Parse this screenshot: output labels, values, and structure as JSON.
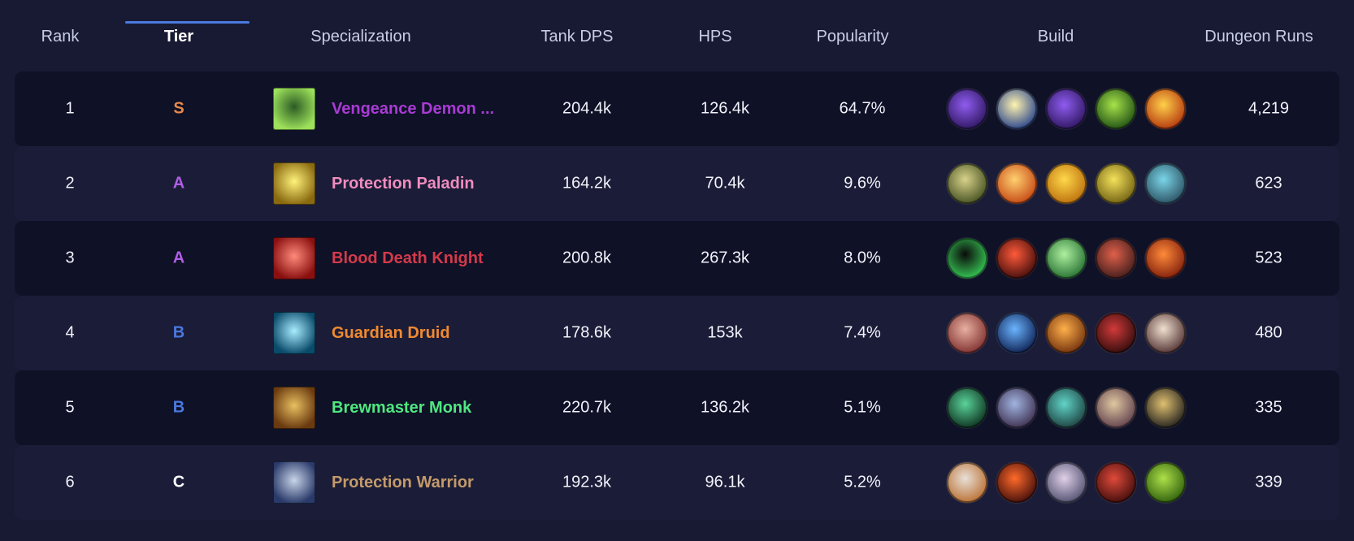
{
  "columns": {
    "rank": "Rank",
    "tier": "Tier",
    "specialization": "Specialization",
    "tank_dps": "Tank DPS",
    "hps": "HPS",
    "popularity": "Popularity",
    "build": "Build",
    "dungeon_runs": "Dungeon Runs"
  },
  "colors": {
    "tier_S": "#e8884a",
    "tier_A": "#b05ee8",
    "tier_B": "#4a78e0",
    "tier_C": "#ffffff"
  },
  "rows": [
    {
      "rank": "1",
      "tier": "S",
      "spec": "Vengeance Demon Hunter",
      "spec_display": "Vengeance Demon ...",
      "spec_color": "#a93bd4",
      "spec_icon": "vengeance-demon-hunter-icon",
      "spec_icon_colors": [
        "#2c5b24",
        "#9ce05b"
      ],
      "tank_dps": "204.4k",
      "hps": "126.4k",
      "popularity": "64.7%",
      "dungeon_runs": "4,219",
      "build": [
        {
          "name": "purple-orb-talent-icon",
          "c1": "#8f5cf0",
          "c2": "#2a1459"
        },
        {
          "name": "fel-slash-talent-icon",
          "c1": "#fff3b0",
          "c2": "#1f3c8a"
        },
        {
          "name": "purple-orb-talent-icon",
          "c1": "#8f5cf0",
          "c2": "#2a1459"
        },
        {
          "name": "green-demon-talent-icon",
          "c1": "#a7e34a",
          "c2": "#1a4a12"
        },
        {
          "name": "fire-beast-talent-icon",
          "c1": "#ffd04a",
          "c2": "#b0300c"
        }
      ]
    },
    {
      "rank": "2",
      "tier": "A",
      "spec": "Protection Paladin",
      "spec_display": "Protection Paladin",
      "spec_color": "#f08cbf",
      "spec_icon": "protection-paladin-icon",
      "spec_icon_colors": [
        "#fff27a",
        "#8a6a10"
      ],
      "tank_dps": "164.2k",
      "hps": "70.4k",
      "popularity": "9.6%",
      "dungeon_runs": "623",
      "build": [
        {
          "name": "lion-head-talent-icon",
          "c1": "#d9d28a",
          "c2": "#3d4a1c"
        },
        {
          "name": "holy-fire-talent-icon",
          "c1": "#ffd070",
          "c2": "#c2400f"
        },
        {
          "name": "golden-guardian-talent-icon",
          "c1": "#ffd84a",
          "c2": "#b86a0a"
        },
        {
          "name": "golden-helm-talent-icon",
          "c1": "#f4e25a",
          "c2": "#6a5a10"
        },
        {
          "name": "ornate-shield-talent-icon",
          "c1": "#7ad6e8",
          "c2": "#274a5c"
        }
      ]
    },
    {
      "rank": "3",
      "tier": "A",
      "spec": "Blood Death Knight",
      "spec_display": "Blood Death Knight",
      "spec_color": "#d43a4a",
      "spec_icon": "blood-death-knight-icon",
      "spec_icon_colors": [
        "#ff8a7a",
        "#8a1010"
      ],
      "tank_dps": "200.8k",
      "hps": "267.3k",
      "popularity": "8.0%",
      "dungeon_runs": "523",
      "build": [
        {
          "name": "green-portal-talent-icon",
          "c1": "#0a0a0a",
          "c2": "#3ad45a"
        },
        {
          "name": "red-skull-talent-icon",
          "c1": "#ff5a3a",
          "c2": "#3a0a0a"
        },
        {
          "name": "green-ghoul-talent-icon",
          "c1": "#aef0a0",
          "c2": "#1f6a2c"
        },
        {
          "name": "blood-claw-talent-icon",
          "c1": "#e0604a",
          "c2": "#3a1a1a"
        },
        {
          "name": "blood-flame-talent-icon",
          "c1": "#ff8a3a",
          "c2": "#7a1a0a"
        }
      ]
    },
    {
      "rank": "4",
      "tier": "B",
      "spec": "Guardian Druid",
      "spec_display": "Guardian Druid",
      "spec_color": "#f08a30",
      "spec_icon": "guardian-druid-icon",
      "spec_icon_colors": [
        "#a8ecff",
        "#0a4a6a"
      ],
      "tank_dps": "178.6k",
      "hps": "153k",
      "popularity": "7.4%",
      "dungeon_runs": "480",
      "build": [
        {
          "name": "bear-claw-talent-icon",
          "c1": "#e8b0a0",
          "c2": "#7a2a2a"
        },
        {
          "name": "blue-swirl-talent-icon",
          "c1": "#6ab4ff",
          "c2": "#0a1a4a"
        },
        {
          "name": "fiery-book-talent-icon",
          "c1": "#ffb04a",
          "c2": "#6a2a0a"
        },
        {
          "name": "bear-head-talent-icon",
          "c1": "#d23a3a",
          "c2": "#2a0a0a"
        },
        {
          "name": "slash-claw-talent-icon",
          "c1": "#f0e0d0",
          "c2": "#4a2a2a"
        }
      ]
    },
    {
      "rank": "5",
      "tier": "B",
      "spec": "Brewmaster Monk",
      "spec_display": "Brewmaster Monk",
      "spec_color": "#4ee880",
      "spec_icon": "brewmaster-monk-icon",
      "spec_icon_colors": [
        "#e8c060",
        "#6a3a10"
      ],
      "tank_dps": "220.7k",
      "hps": "136.2k",
      "popularity": "5.1%",
      "dungeon_runs": "335",
      "build": [
        {
          "name": "jade-vortex-talent-icon",
          "c1": "#5ad49a",
          "c2": "#0a2a1a"
        },
        {
          "name": "blue-monk-talent-icon",
          "c1": "#a0b4e0",
          "c2": "#3a2a4a"
        },
        {
          "name": "teal-strike-talent-icon",
          "c1": "#60d4c8",
          "c2": "#1a3a3a"
        },
        {
          "name": "brew-keg-talent-icon",
          "c1": "#e0c8a0",
          "c2": "#5a3a4a"
        },
        {
          "name": "drunken-monk-talent-icon",
          "c1": "#e0c070",
          "c2": "#1a1a1a"
        }
      ]
    },
    {
      "rank": "6",
      "tier": "C",
      "spec": "Protection Warrior",
      "spec_display": "Protection Warrior",
      "spec_color": "#c49a6a",
      "spec_icon": "protection-warrior-icon",
      "spec_icon_colors": [
        "#c8d4e8",
        "#2a3a6a"
      ],
      "tank_dps": "192.3k",
      "hps": "96.1k",
      "popularity": "5.2%",
      "dungeon_runs": "339",
      "build": [
        {
          "name": "steel-shield-talent-icon",
          "c1": "#e8e0d8",
          "c2": "#b86a2a"
        },
        {
          "name": "crimson-slash-talent-icon",
          "c1": "#ff6a2a",
          "c2": "#3a0a0a"
        },
        {
          "name": "warrior-face-talent-icon",
          "c1": "#e0d0e8",
          "c2": "#4a4a6a"
        },
        {
          "name": "red-berserker-talent-icon",
          "c1": "#e04a3a",
          "c2": "#3a0a0a"
        },
        {
          "name": "green-orc-talent-icon",
          "c1": "#aee04a",
          "c2": "#2a5a0a"
        }
      ]
    }
  ]
}
